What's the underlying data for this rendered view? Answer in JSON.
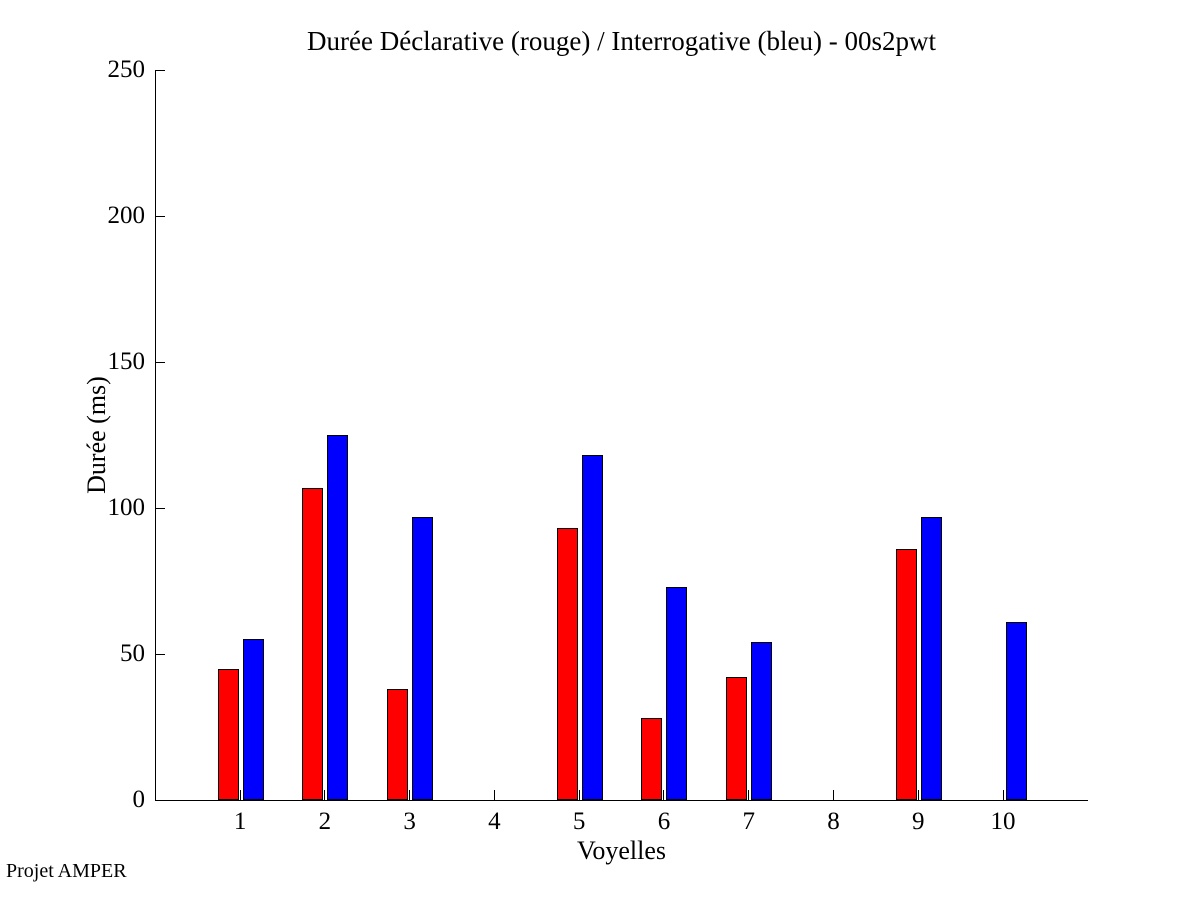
{
  "chart_data": {
    "type": "bar",
    "title": "Durée Déclarative (rouge) / Interrogative (bleu) - 00s2pwt",
    "xlabel": "Voyelles",
    "ylabel": "Durée (ms)",
    "annotation": "Projet AMPER",
    "categories": [
      "1",
      "2",
      "3",
      "4",
      "5",
      "6",
      "7",
      "8",
      "9",
      "10"
    ],
    "series": [
      {
        "name": "Déclarative",
        "key": "declarative",
        "color": "#ff0000",
        "values": [
          45,
          107,
          38,
          0,
          93,
          28,
          42,
          0,
          86,
          0
        ]
      },
      {
        "name": "Interrogative",
        "key": "interrogative",
        "color": "#0000ff",
        "values": [
          55,
          125,
          97,
          0,
          118,
          73,
          54,
          0,
          97,
          61
        ]
      }
    ],
    "ylim": [
      0,
      250
    ],
    "yticks": [
      0,
      50,
      100,
      150,
      200,
      250
    ],
    "xlim": [
      0,
      11
    ],
    "bar_outline_color": "#000000",
    "axis_color": "#000000",
    "background_color": "#ffffff",
    "grid": false,
    "legend_position": "none"
  }
}
